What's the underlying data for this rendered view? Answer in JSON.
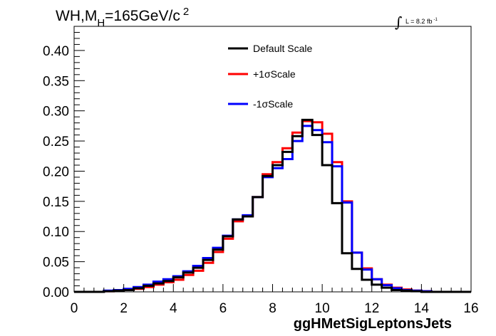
{
  "title": {
    "main": "WH,M",
    "subscript": "H",
    "rest": "=165GeV/c",
    "superscript": "2"
  },
  "luminosity": {
    "integral": "∫",
    "text": "L = 8.2 fb",
    "superscript": "-1"
  },
  "chart_data": {
    "type": "line",
    "xlabel": "ggHMetSigLeptonsJets",
    "ylabel": "",
    "xlim": [
      0,
      16
    ],
    "ylim": [
      0,
      0.44
    ],
    "x_ticks": [
      "0",
      "2",
      "4",
      "6",
      "8",
      "10",
      "12",
      "14",
      "16"
    ],
    "y_ticks": [
      "0.00",
      "0.05",
      "0.10",
      "0.15",
      "0.20",
      "0.25",
      "0.30",
      "0.35",
      "0.40"
    ],
    "grid": false,
    "legend_position": "top-center",
    "bin_edges": [
      0,
      0.4,
      0.8,
      1.2,
      1.6,
      2.0,
      2.4,
      2.8,
      3.2,
      3.6,
      4.0,
      4.4,
      4.8,
      5.2,
      5.6,
      6.0,
      6.4,
      6.8,
      7.2,
      7.6,
      8.0,
      8.4,
      8.8,
      9.2,
      9.6,
      10.0,
      10.4,
      10.8,
      11.2,
      11.6,
      12.0,
      12.4,
      12.8,
      13.2,
      13.6,
      14.0,
      14.4,
      14.8,
      15.2,
      15.6,
      16.0
    ],
    "series": [
      {
        "name": "Default Scale",
        "color": "#000000",
        "values": [
          0.0,
          0.0,
          0.0,
          0.001,
          0.002,
          0.003,
          0.006,
          0.01,
          0.014,
          0.018,
          0.024,
          0.032,
          0.04,
          0.053,
          0.07,
          0.092,
          0.12,
          0.125,
          0.157,
          0.192,
          0.21,
          0.232,
          0.258,
          0.285,
          0.26,
          0.21,
          0.147,
          0.064,
          0.038,
          0.02,
          0.012,
          0.007,
          0.003,
          0.002,
          0.001,
          0.0,
          0.0,
          0.0,
          0.0,
          0.0
        ]
      },
      {
        "name": "+1σScale",
        "color": "#ff0000",
        "values": [
          0.0,
          0.0,
          0.0,
          0.001,
          0.002,
          0.003,
          0.005,
          0.008,
          0.012,
          0.016,
          0.02,
          0.028,
          0.035,
          0.048,
          0.066,
          0.088,
          0.117,
          0.125,
          0.157,
          0.195,
          0.215,
          0.238,
          0.264,
          0.283,
          0.281,
          0.262,
          0.215,
          0.15,
          0.065,
          0.039,
          0.021,
          0.012,
          0.007,
          0.004,
          0.002,
          0.001,
          0.0,
          0.0,
          0.0,
          0.0
        ]
      },
      {
        "name": "-1σScale",
        "color": "#0000ff",
        "values": [
          0.0,
          0.0,
          0.0,
          0.002,
          0.003,
          0.005,
          0.008,
          0.012,
          0.017,
          0.021,
          0.026,
          0.034,
          0.043,
          0.056,
          0.073,
          0.093,
          0.12,
          0.127,
          0.157,
          0.19,
          0.205,
          0.22,
          0.25,
          0.275,
          0.268,
          0.248,
          0.208,
          0.148,
          0.065,
          0.037,
          0.021,
          0.011,
          0.006,
          0.003,
          0.002,
          0.001,
          0.0,
          0.0,
          0.0,
          0.0
        ]
      }
    ]
  }
}
